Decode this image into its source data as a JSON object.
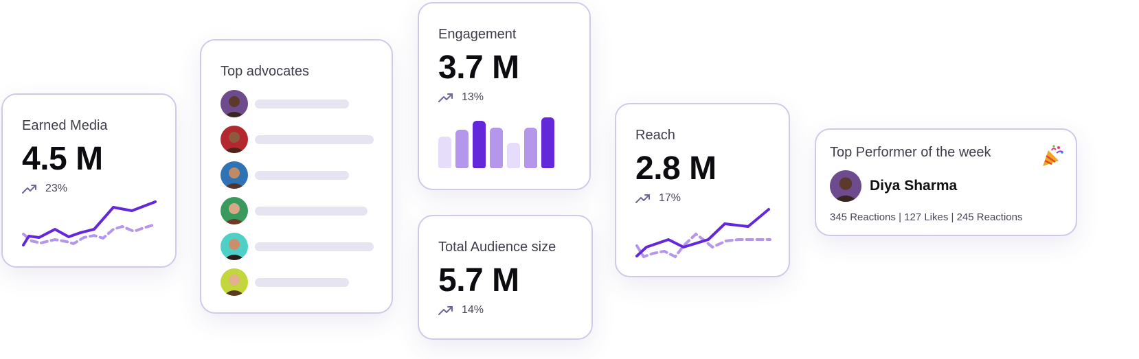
{
  "earned_media": {
    "title": "Earned Media",
    "value": "4.5 M",
    "trend": "23%"
  },
  "top_advocates": {
    "title": "Top advocates",
    "avatars": [
      "advocate-avatar-1",
      "advocate-avatar-2",
      "advocate-avatar-3",
      "advocate-avatar-4",
      "advocate-avatar-5",
      "advocate-avatar-6"
    ]
  },
  "engagement": {
    "title": "Engagement",
    "value": "3.7 M",
    "trend": "13%",
    "bars": [
      0.62,
      0.76,
      0.93,
      0.8,
      0.5,
      0.8,
      1.0
    ],
    "bar_colors": [
      "#e6ddfa",
      "#b497ea",
      "#6228da",
      "#b497ea",
      "#e6ddfa",
      "#b497ea",
      "#6228da"
    ]
  },
  "total_audience": {
    "title": "Total Audience size",
    "value": "5.7 M",
    "trend": "14%"
  },
  "reach": {
    "title": "Reach",
    "value": "2.8 M",
    "trend": "17%"
  },
  "top_performer": {
    "title": "Top Performer of the week",
    "name": "Diya Sharma",
    "stats": "345 Reactions | 127 Likes | 245 Reactions"
  },
  "colors": {
    "accent": "#6228da",
    "accent_light": "#b497ea",
    "card_border": "#d2c8ea",
    "skeleton": "#e7e4f1",
    "trend_icon": "#6f6597"
  },
  "icons": {
    "trend": "trend-up-icon",
    "celebration": "party-popper-icon"
  }
}
